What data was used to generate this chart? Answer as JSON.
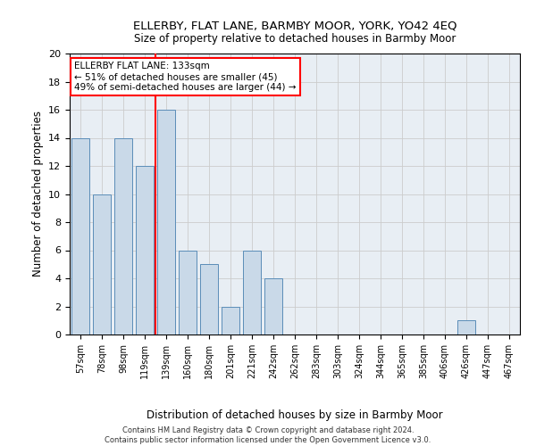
{
  "title": "ELLERBY, FLAT LANE, BARMBY MOOR, YORK, YO42 4EQ",
  "subtitle": "Size of property relative to detached houses in Barmby Moor",
  "xlabel_bottom": "Distribution of detached houses by size in Barmby Moor",
  "ylabel": "Number of detached properties",
  "footer_line1": "Contains HM Land Registry data © Crown copyright and database right 2024.",
  "footer_line2": "Contains public sector information licensed under the Open Government Licence v3.0.",
  "annotation_title": "ELLERBY FLAT LANE: 133sqm",
  "annotation_line2": "← 51% of detached houses are smaller (45)",
  "annotation_line3": "49% of semi-detached houses are larger (44) →",
  "bar_labels": [
    "57sqm",
    "78sqm",
    "98sqm",
    "119sqm",
    "139sqm",
    "160sqm",
    "180sqm",
    "201sqm",
    "221sqm",
    "242sqm",
    "262sqm",
    "283sqm",
    "303sqm",
    "324sqm",
    "344sqm",
    "365sqm",
    "385sqm",
    "406sqm",
    "426sqm",
    "447sqm",
    "467sqm"
  ],
  "bar_values": [
    14,
    10,
    14,
    12,
    16,
    6,
    5,
    2,
    6,
    4,
    0,
    0,
    0,
    0,
    0,
    0,
    0,
    0,
    1,
    0,
    0
  ],
  "bar_color": "#c9d9e8",
  "bar_edge_color": "#5b8db8",
  "grid_color": "#cccccc",
  "vline_x": 3.5,
  "vline_color": "red",
  "annotation_box_color": "red",
  "ylim": [
    0,
    20
  ],
  "yticks": [
    0,
    2,
    4,
    6,
    8,
    10,
    12,
    14,
    16,
    18,
    20
  ],
  "background_color": "#e8eef4"
}
